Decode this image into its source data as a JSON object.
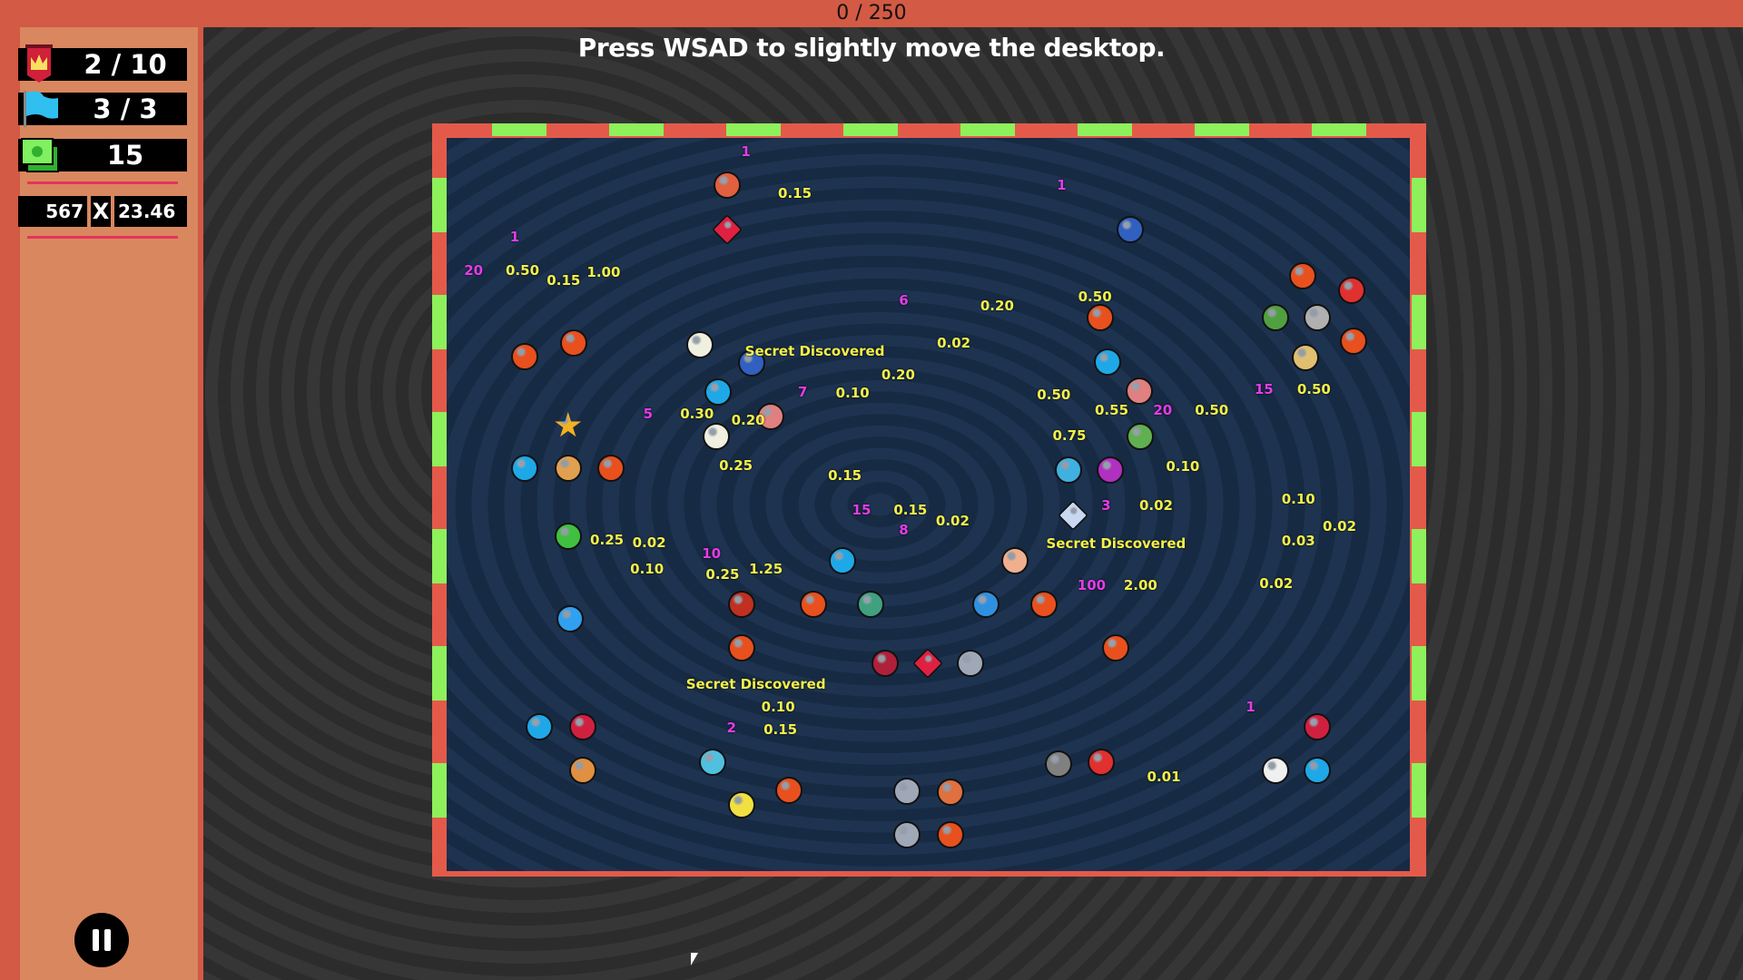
{
  "top_bar": {
    "progress_text": "0 / 250",
    "progress_fraction": 0.0
  },
  "hint": "Press WSAD to slightly move the desktop.",
  "sidebar": {
    "stats": [
      {
        "icon": "crown-banner-icon",
        "value": "2 / 10"
      },
      {
        "icon": "blue-flag-icon",
        "value": "3 / 3"
      },
      {
        "icon": "cash-icon",
        "value": "15"
      }
    ],
    "score": {
      "base": "567",
      "times": "X",
      "multiplier": "23.46"
    },
    "pause_icon": "pause-icon"
  },
  "colors": {
    "top_bar": "#d35a44",
    "sidebar": "#d9875f",
    "wall_red": "#e45a4a",
    "wall_green": "#8ef05a",
    "field": "#1d3350",
    "number_yellow": "#f4f04a",
    "number_magenta": "#e43ce8"
  },
  "board": {
    "objects": [
      {
        "kind": "orange-ball",
        "color": "#e8501e"
      },
      {
        "kind": "orange-ball",
        "color": "#e8501e"
      },
      {
        "kind": "orange-ball",
        "color": "#e8501e"
      },
      {
        "kind": "orange-ball",
        "color": "#e8501e"
      },
      {
        "kind": "orange-ball",
        "color": "#e8501e"
      },
      {
        "kind": "orange-ball",
        "color": "#e8501e"
      },
      {
        "kind": "orange-ball",
        "color": "#e8501e"
      },
      {
        "kind": "orange-ball",
        "color": "#e8501e"
      },
      {
        "kind": "orange-ball",
        "color": "#e8501e"
      },
      {
        "kind": "orange-ball",
        "color": "#e8501e"
      },
      {
        "kind": "orange-ball",
        "color": "#e8501e"
      },
      {
        "kind": "orange-ball",
        "color": "#e8501e"
      },
      {
        "kind": "blue-ball",
        "color": "#1ea8e8"
      },
      {
        "kind": "blue-ball",
        "color": "#1ea8e8"
      },
      {
        "kind": "blue-ball",
        "color": "#1ea8e8"
      },
      {
        "kind": "blue-ball",
        "color": "#1ea8e8"
      },
      {
        "kind": "blue-ball",
        "color": "#1ea8e8"
      },
      {
        "kind": "blue-ball",
        "color": "#1ea8e8"
      },
      {
        "kind": "star",
        "color": "#f4b020"
      },
      {
        "kind": "heart",
        "color": "#b0203a"
      },
      {
        "kind": "diamond",
        "color": "#c8d8f0"
      },
      {
        "kind": "egg",
        "color": "#f0b090"
      },
      {
        "kind": "mountain",
        "color": "#40a080"
      },
      {
        "kind": "pinwheel",
        "color": "#3090e0"
      },
      {
        "kind": "elephant",
        "color": "#a0a8b8"
      },
      {
        "kind": "elephant",
        "color": "#a0a8b8"
      },
      {
        "kind": "elephant",
        "color": "#a0a8b8"
      },
      {
        "kind": "tiger",
        "color": "#e09040"
      },
      {
        "kind": "rose",
        "color": "#d02040"
      },
      {
        "kind": "rose",
        "color": "#d02040"
      },
      {
        "kind": "purple-gem",
        "color": "#b030c0"
      },
      {
        "kind": "red-gem",
        "color": "#e02040"
      },
      {
        "kind": "red-gem",
        "color": "#e02040"
      },
      {
        "kind": "bread",
        "color": "#e0a050"
      },
      {
        "kind": "water-drop",
        "color": "#30a0f0"
      },
      {
        "kind": "battery",
        "color": "#40c040"
      },
      {
        "kind": "flower",
        "color": "#f0f0e0"
      },
      {
        "kind": "flower",
        "color": "#f0f0e0"
      },
      {
        "kind": "chick",
        "color": "#f0e040"
      },
      {
        "kind": "whale",
        "color": "#50c0e0"
      },
      {
        "kind": "monkey",
        "color": "#808080"
      },
      {
        "kind": "rocket",
        "color": "#e03030"
      },
      {
        "kind": "rocket",
        "color": "#e03030"
      },
      {
        "kind": "clown",
        "color": "#f0f0f0"
      },
      {
        "kind": "mirror",
        "color": "#3060c0"
      },
      {
        "kind": "mirror",
        "color": "#3060c0"
      },
      {
        "kind": "mushroom",
        "color": "#e06040"
      },
      {
        "kind": "cookie",
        "color": "#e0c070"
      },
      {
        "kind": "cabbage",
        "color": "#60b050"
      },
      {
        "kind": "pig",
        "color": "#e08080"
      },
      {
        "kind": "pig",
        "color": "#e08080"
      },
      {
        "kind": "devil",
        "color": "#c03020"
      },
      {
        "kind": "angel",
        "color": "#40b0e0"
      },
      {
        "kind": "radio",
        "color": "#e07040"
      },
      {
        "kind": "palm",
        "color": "#50a040"
      },
      {
        "kind": "koala",
        "color": "#b0b0b0"
      }
    ],
    "labels": [
      {
        "text": "Secret Discovered",
        "tone": "y"
      },
      {
        "text": "Secret Discovered",
        "tone": "y"
      },
      {
        "text": "Secret Discovered",
        "tone": "y"
      },
      {
        "text": "0.15",
        "tone": "y"
      },
      {
        "text": "0.50",
        "tone": "y"
      },
      {
        "text": "1.00",
        "tone": "y"
      },
      {
        "text": "0.15",
        "tone": "y"
      },
      {
        "text": "0.20",
        "tone": "y"
      },
      {
        "text": "0.50",
        "tone": "y"
      },
      {
        "text": "0.50",
        "tone": "y"
      },
      {
        "text": "0.50",
        "tone": "y"
      },
      {
        "text": "0.10",
        "tone": "y"
      },
      {
        "text": "0.10",
        "tone": "y"
      },
      {
        "text": "0.25",
        "tone": "y"
      },
      {
        "text": "0.02",
        "tone": "y"
      },
      {
        "text": "0.10",
        "tone": "y"
      },
      {
        "text": "1.25",
        "tone": "y"
      },
      {
        "text": "0.15",
        "tone": "y"
      },
      {
        "text": "0.02",
        "tone": "y"
      },
      {
        "text": "2.00",
        "tone": "y"
      },
      {
        "text": "0.10",
        "tone": "y"
      },
      {
        "text": "0.15",
        "tone": "y"
      },
      {
        "text": "0.01",
        "tone": "y"
      },
      {
        "text": "0.30",
        "tone": "y"
      },
      {
        "text": "0.20",
        "tone": "y"
      },
      {
        "text": "0.25",
        "tone": "y"
      },
      {
        "text": "0.10",
        "tone": "y"
      },
      {
        "text": "0.15",
        "tone": "y"
      },
      {
        "text": "0.02",
        "tone": "y"
      },
      {
        "text": "0.20",
        "tone": "y"
      },
      {
        "text": "0.55",
        "tone": "y"
      },
      {
        "text": "0.75",
        "tone": "y"
      },
      {
        "text": "0.02",
        "tone": "y"
      },
      {
        "text": "0.02",
        "tone": "y"
      },
      {
        "text": "0.50",
        "tone": "y"
      },
      {
        "text": "0.03",
        "tone": "y"
      },
      {
        "text": "0.02",
        "tone": "y"
      },
      {
        "text": "0.25",
        "tone": "y"
      },
      {
        "text": "1",
        "tone": "m"
      },
      {
        "text": "20",
        "tone": "m"
      },
      {
        "text": "5",
        "tone": "m"
      },
      {
        "text": "15",
        "tone": "m"
      },
      {
        "text": "100",
        "tone": "m"
      },
      {
        "text": "20",
        "tone": "m"
      },
      {
        "text": "1",
        "tone": "m"
      },
      {
        "text": "6",
        "tone": "m"
      },
      {
        "text": "7",
        "tone": "m"
      },
      {
        "text": "8",
        "tone": "m"
      },
      {
        "text": "10",
        "tone": "m"
      },
      {
        "text": "15",
        "tone": "m"
      },
      {
        "text": "3",
        "tone": "m"
      },
      {
        "text": "2",
        "tone": "m"
      },
      {
        "text": "1",
        "tone": "m"
      },
      {
        "text": "1",
        "tone": "m"
      }
    ]
  }
}
